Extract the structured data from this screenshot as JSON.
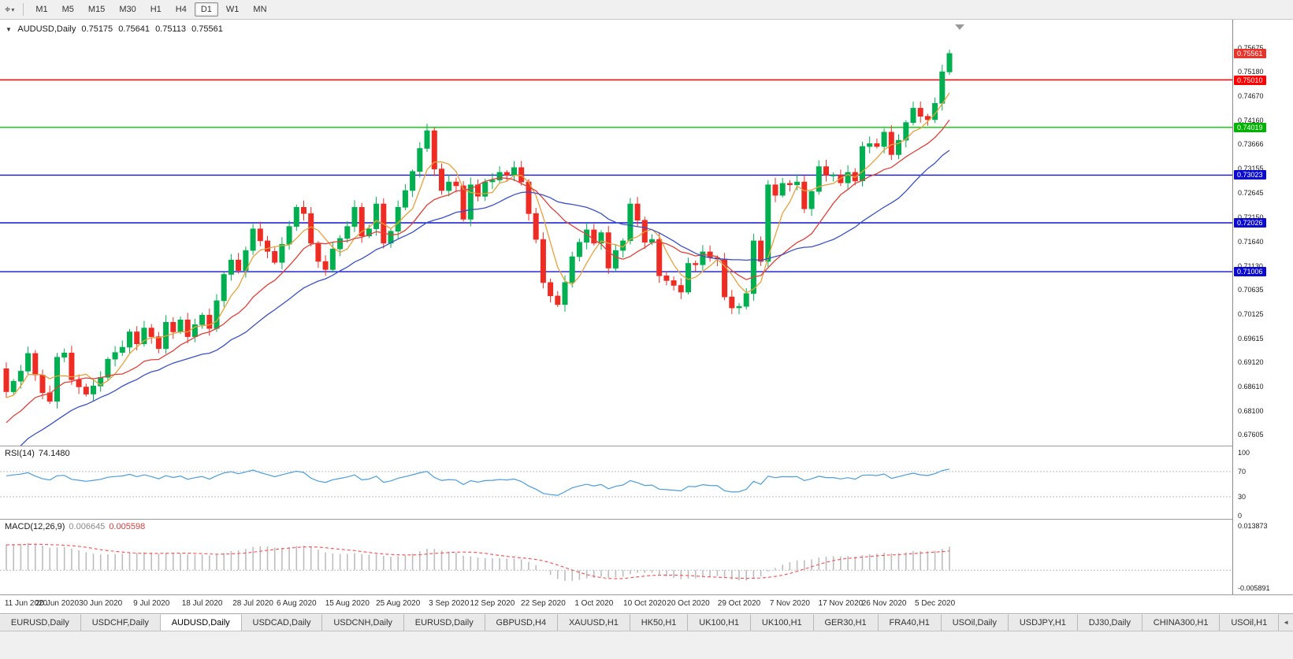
{
  "toolbar": {
    "chart_tool_icon": "⌖",
    "dropdown_icon": "▾",
    "timeframes": [
      "M1",
      "M5",
      "M15",
      "M30",
      "H1",
      "H4",
      "D1",
      "W1",
      "MN"
    ],
    "active_timeframe": "D1"
  },
  "chart_header": {
    "collapse_icon": "▼",
    "symbol_label": "AUDUSD,Daily",
    "open": "0.75175",
    "high": "0.75641",
    "low": "0.75113",
    "close": "0.75561"
  },
  "price_scale": {
    "ticks": [
      "0.75675",
      "0.75180",
      "0.74670",
      "0.74160",
      "0.73666",
      "0.73155",
      "0.72645",
      "0.72150",
      "0.71640",
      "0.71130",
      "0.70635",
      "0.70125",
      "0.69615",
      "0.69120",
      "0.68610",
      "0.68100",
      "0.67605"
    ],
    "badges": [
      {
        "label": "0.75561",
        "value": 0.75561,
        "color": "#E8352B"
      },
      {
        "label": "0.75010",
        "value": 0.7501,
        "color": "#FF0000"
      },
      {
        "label": "0.74019",
        "value": 0.74019,
        "color": "#00B300"
      },
      {
        "label": "0.73023",
        "value": 0.73023,
        "color": "#0A0AD0"
      },
      {
        "label": "0.72026",
        "value": 0.72026,
        "color": "#0A0AD0"
      },
      {
        "label": "0.71006",
        "value": 0.71006,
        "color": "#0A0AD0"
      }
    ]
  },
  "indicators": {
    "rsi": {
      "name_label": "RSI(14)",
      "value_label": "74.1480",
      "scale_labels": [
        "100",
        "70",
        "30",
        "0"
      ],
      "levels": [
        70,
        30
      ],
      "line_color": "#4A9EDD"
    },
    "macd": {
      "name_label": "MACD(12,26,9)",
      "main_value_label": "0.006645",
      "signal_value_label": "0.005598",
      "scale_top_label": "0.013873",
      "scale_bottom_label": "-0.005891",
      "histogram_color": "#BDBDBD",
      "signal_color": "#FF4D4D"
    }
  },
  "x_axis_dates": [
    "11 Jun 2020",
    "20 Jun 2020",
    "30 Jun 2020",
    "9 Jul 2020",
    "18 Jul 2020",
    "28 Jul 2020",
    "6 Aug 2020",
    "15 Aug 2020",
    "25 Aug 2020",
    "3 Sep 2020",
    "12 Sep 2020",
    "22 Sep 2020",
    "1 Oct 2020",
    "10 Oct 2020",
    "20 Oct 2020",
    "29 Oct 2020",
    "7 Nov 2020",
    "17 Nov 2020",
    "26 Nov 2020",
    "5 Dec 2020"
  ],
  "bottom_tabs": {
    "items": [
      "EURUSD,Daily",
      "USDCHF,Daily",
      "AUDUSD,Daily",
      "USDCAD,Daily",
      "USDCNH,Daily",
      "EURUSD,Daily",
      "GBPUSD,H4",
      "XAUUSD,H1",
      "HK50,H1",
      "UK100,H1",
      "UK100,H1",
      "GER30,H1",
      "FRA40,H1",
      "USOil,Daily",
      "USDJPY,H1",
      "DJ30,Daily",
      "CHINA300,H1",
      "USOil,H1"
    ],
    "active_index": 2,
    "scroll_icon": "◄"
  },
  "chart_data": {
    "type": "candlestick",
    "symbol": "AUDUSD",
    "timeframe": "Daily",
    "title": "AUDUSD,Daily 0.75175 0.75641 0.75113 0.75561",
    "ohlc_display": {
      "open": 0.75175,
      "high": 0.75641,
      "low": 0.75113,
      "close": 0.75561
    },
    "price_axis": {
      "top": 0.75675,
      "bottom": 0.67605
    },
    "closes": [
      0.685,
      0.6872,
      0.6893,
      0.693,
      0.6885,
      0.6848,
      0.683,
      0.6922,
      0.6931,
      0.6875,
      0.686,
      0.6845,
      0.6862,
      0.688,
      0.6918,
      0.6932,
      0.6943,
      0.6975,
      0.695,
      0.6983,
      0.6965,
      0.694,
      0.6995,
      0.6975,
      0.7,
      0.6965,
      0.699,
      0.701,
      0.6982,
      0.704,
      0.7095,
      0.7125,
      0.7103,
      0.7145,
      0.719,
      0.7165,
      0.7143,
      0.712,
      0.7158,
      0.7195,
      0.7235,
      0.7222,
      0.716,
      0.7122,
      0.7105,
      0.7148,
      0.717,
      0.7195,
      0.7235,
      0.7175,
      0.719,
      0.7242,
      0.716,
      0.7185,
      0.7235,
      0.727,
      0.731,
      0.7358,
      0.7395,
      0.7315,
      0.727,
      0.7288,
      0.728,
      0.721,
      0.7282,
      0.7258,
      0.7288,
      0.7292,
      0.7308,
      0.7302,
      0.7318,
      0.7288,
      0.7222,
      0.7168,
      0.7078,
      0.705,
      0.7032,
      0.7078,
      0.7132,
      0.7162,
      0.7188,
      0.716,
      0.7182,
      0.7108,
      0.7145,
      0.7165,
      0.7242,
      0.7208,
      0.7162,
      0.7168,
      0.7092,
      0.7082,
      0.7072,
      0.7058,
      0.7118,
      0.7115,
      0.7142,
      0.713,
      0.7127,
      0.7048,
      0.7025,
      0.7028,
      0.7055,
      0.7165,
      0.7122,
      0.7282,
      0.726,
      0.7285,
      0.7282,
      0.7288,
      0.7232,
      0.7268,
      0.732,
      0.7302,
      0.7302,
      0.7286,
      0.7308,
      0.729,
      0.7362,
      0.7368,
      0.7362,
      0.7392,
      0.7345,
      0.7375,
      0.7412,
      0.7442,
      0.7425,
      0.7418,
      0.7452,
      0.7518,
      0.75561
    ],
    "hlines": [
      {
        "price": 0.7501,
        "color": "#FF0000"
      },
      {
        "price": 0.74019,
        "color": "#00CC00"
      },
      {
        "price": 0.73023,
        "color": "#1414D2"
      },
      {
        "price": 0.72026,
        "color": "#1414D2"
      },
      {
        "price": 0.71006,
        "color": "#1414D2"
      }
    ],
    "moving_averages": [
      {
        "period": 5,
        "color": "#E8A13A"
      },
      {
        "period": 13,
        "color": "#E04038"
      },
      {
        "period": 25,
        "color": "#3A50C8"
      }
    ],
    "candle_colors": {
      "up": "#00B050",
      "down": "#EF2C24"
    },
    "rsi": {
      "period": 14,
      "last_value": 74.148
    },
    "macd": {
      "fast": 12,
      "slow": 26,
      "signal": 9,
      "last_main": 0.006645,
      "last_signal": 0.005598,
      "axis_top": 0.013873,
      "axis_bottom": -0.005891
    }
  }
}
